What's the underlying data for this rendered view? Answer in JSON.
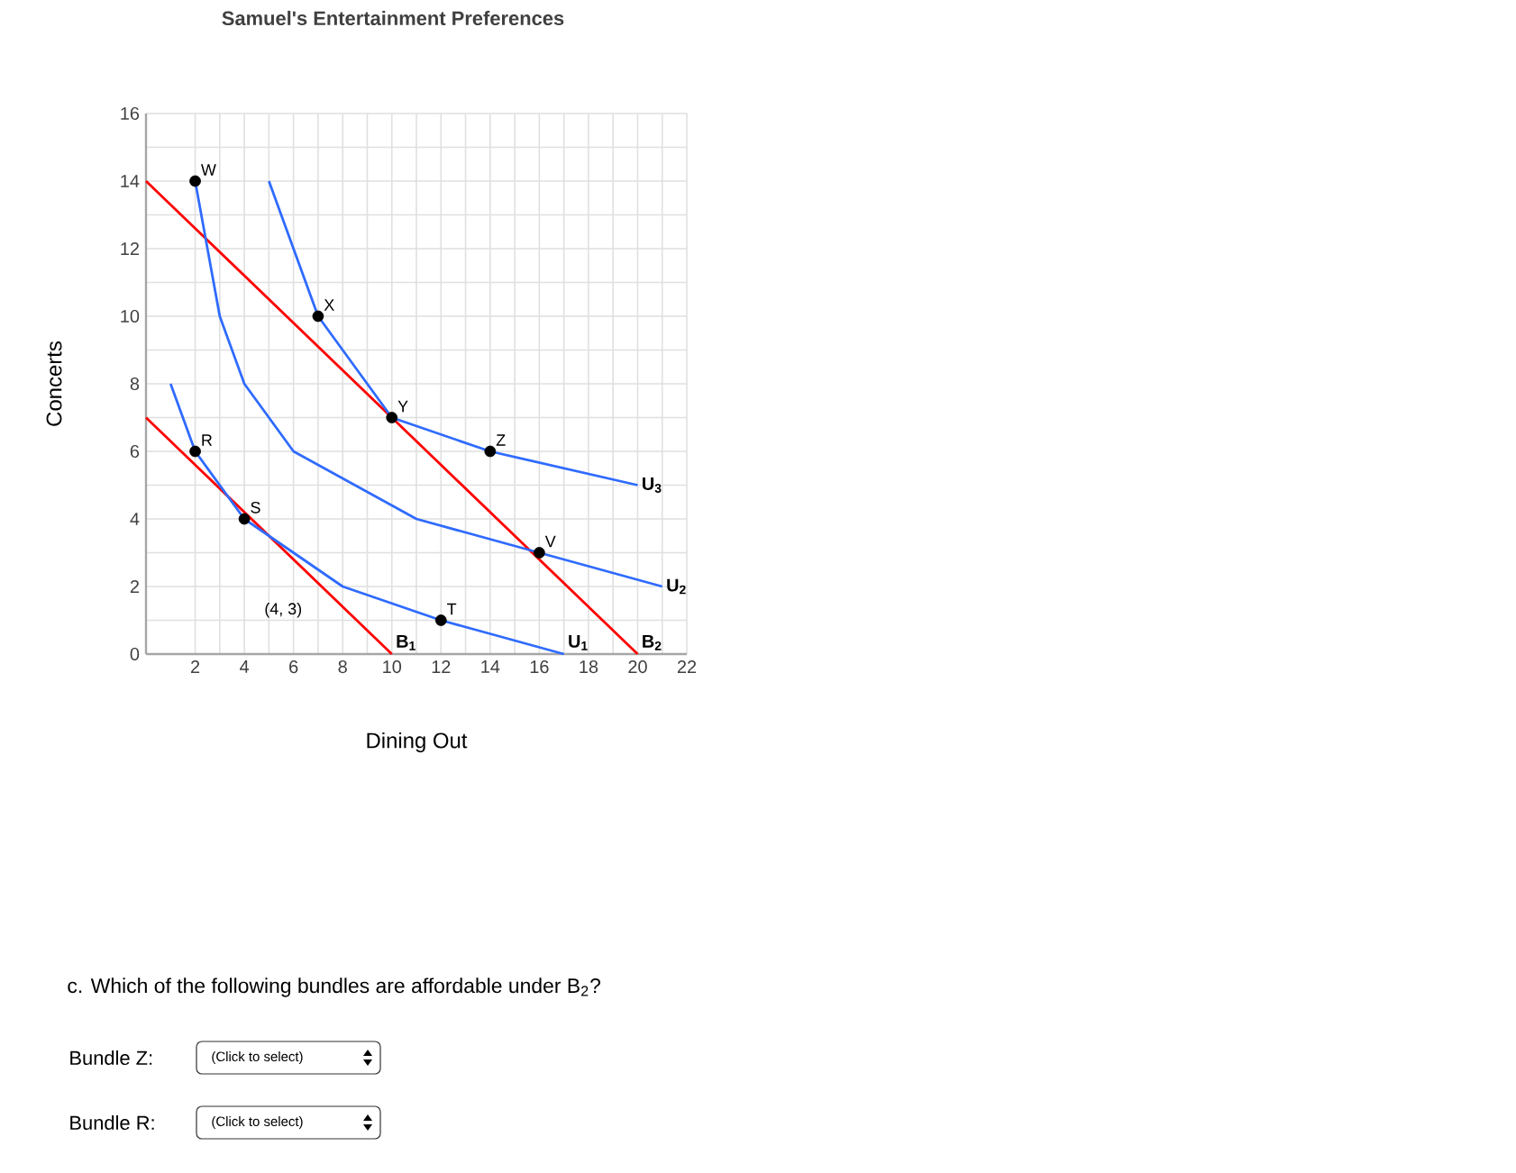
{
  "chart_data": {
    "type": "line",
    "title": "Samuel's Entertainment Preferences",
    "xlabel": "Dining Out",
    "ylabel": "Concerts",
    "xlim": [
      0,
      22
    ],
    "ylim": [
      0,
      16
    ],
    "xticks": [
      2,
      4,
      6,
      8,
      10,
      12,
      14,
      16,
      18,
      20,
      22
    ],
    "yticks": [
      0,
      2,
      4,
      6,
      8,
      10,
      12,
      14,
      16
    ],
    "grid": true,
    "series": [
      {
        "name": "B$_{1}$",
        "color": "#ff0000",
        "x": [
          0,
          10
        ],
        "values": [
          7,
          0
        ]
      },
      {
        "name": "B$_{2}$",
        "color": "#ff0000",
        "x": [
          0,
          20
        ],
        "values": [
          14,
          0
        ]
      },
      {
        "name": "U$_{1}$",
        "color": "#2f6bff",
        "x": [
          1,
          2,
          4,
          8,
          12,
          17
        ],
        "values": [
          8,
          6,
          4,
          2,
          1,
          0
        ]
      },
      {
        "name": "U$_{2}$",
        "color": "#2f6bff",
        "x": [
          2,
          3,
          4,
          6,
          11,
          16,
          21
        ],
        "values": [
          14,
          10,
          8,
          6,
          4,
          3,
          2
        ]
      },
      {
        "name": "U$_{3}$",
        "color": "#2f6bff",
        "x": [
          5,
          7,
          10,
          14,
          20
        ],
        "values": [
          14,
          10,
          7,
          6,
          5
        ]
      },
      {
        "type": "scatter",
        "marker": "circle",
        "color": "#000000",
        "x": [
          2,
          7,
          10,
          14,
          16,
          2,
          4,
          12
        ],
        "values": [
          14,
          10,
          7,
          6,
          3,
          6,
          4,
          1
        ]
      }
    ],
    "annotations": [
      {
        "text": "W",
        "x": 2,
        "y": 14
      },
      {
        "text": "X",
        "x": 7,
        "y": 10
      },
      {
        "text": "Y",
        "x": 10,
        "y": 7
      },
      {
        "text": "Z",
        "x": 14,
        "y": 6
      },
      {
        "text": "V",
        "x": 16,
        "y": 3
      },
      {
        "text": "R",
        "x": 2,
        "y": 6
      },
      {
        "text": "S",
        "x": 4,
        "y": 4
      },
      {
        "text": "T",
        "x": 12,
        "y": 1
      },
      "(4, 3)",
      "c. Which of the following bundles are affordable under B$_{2}$?",
      "Bundle Z:",
      "(Click to select)",
      "Bundle R:",
      "(Click to select)"
    ]
  }
}
